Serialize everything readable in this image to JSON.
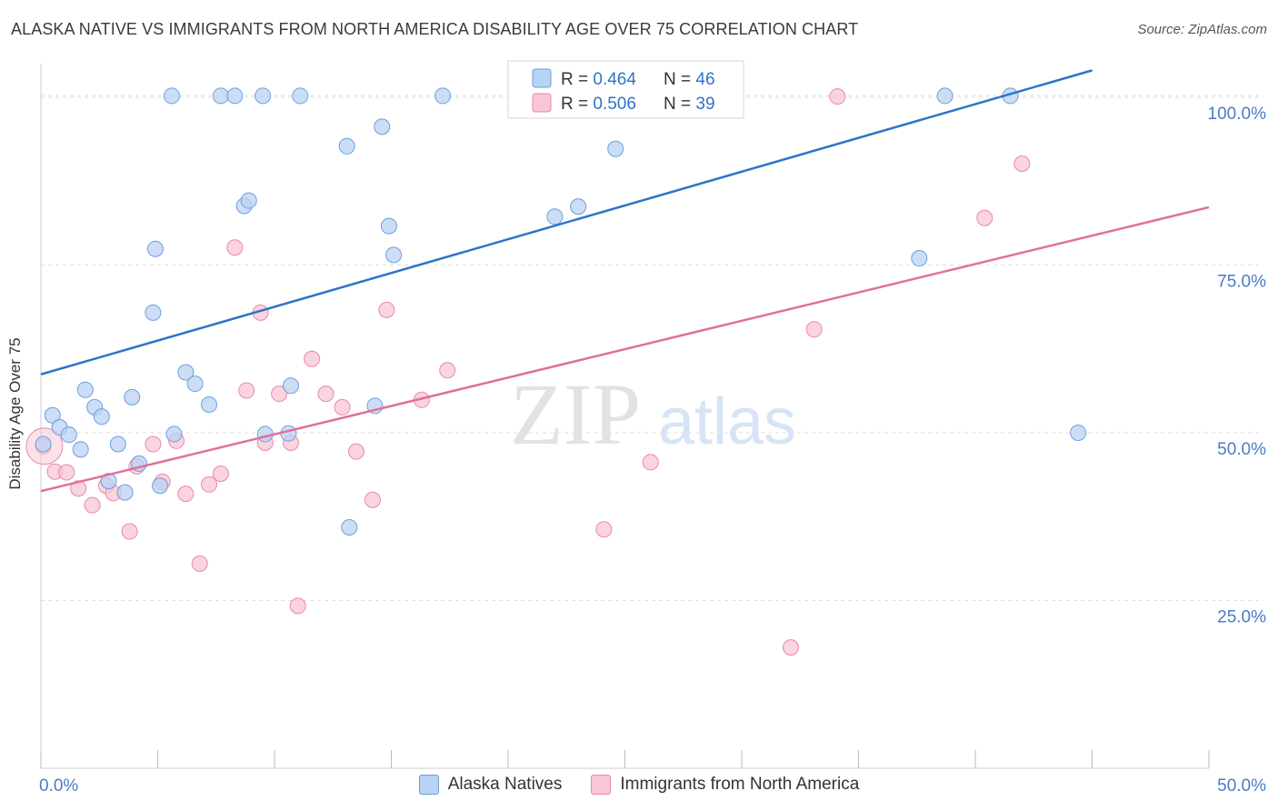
{
  "title": "ALASKA NATIVE VS IMMIGRANTS FROM NORTH AMERICA DISABILITY AGE OVER 75 CORRELATION CHART",
  "source": "Source: ZipAtlas.com",
  "watermark": {
    "zip": "ZIP",
    "atlas": "atlas"
  },
  "colors": {
    "blue_fill": "#b9d3f3",
    "blue_stroke": "#6d9ee0",
    "blue_line": "#2e74c9",
    "pink_fill": "#f8c6d4",
    "pink_stroke": "#e98aa8",
    "pink_line": "#e0709a",
    "tick_label": "#4a7cc4",
    "grid": "#dedede"
  },
  "legend": {
    "rows": [
      {
        "r_label": "R = ",
        "r_value": "0.464",
        "n_label": "N = ",
        "n_value": "46"
      },
      {
        "r_label": "R = ",
        "r_value": "0.506",
        "n_label": "N = ",
        "n_value": "39"
      }
    ]
  },
  "chart_data": {
    "type": "scatter",
    "title": "ALASKA NATIVE VS IMMIGRANTS FROM NORTH AMERICA DISABILITY AGE OVER 75 CORRELATION CHART",
    "xlabel": "",
    "ylabel": "Disability Age Over 75",
    "xlim": [
      0,
      50
    ],
    "ylim": [
      0,
      105
    ],
    "x_tick_labels": [
      "0.0%",
      "50.0%"
    ],
    "y_ticks": [
      25,
      50,
      75,
      100
    ],
    "y_tick_labels": [
      "25.0%",
      "50.0%",
      "75.0%",
      "100.0%"
    ],
    "grid": true,
    "legend_position": "bottom",
    "series": [
      {
        "name": "Alaska Natives",
        "r": 0.464,
        "n": 46,
        "trend": {
          "x": [
            0,
            45
          ],
          "y": [
            58.7,
            104
          ]
        },
        "points": [
          [
            0.1,
            48.3
          ],
          [
            0.5,
            52.6
          ],
          [
            0.8,
            50.8
          ],
          [
            1.2,
            49.7
          ],
          [
            1.7,
            47.5
          ],
          [
            1.9,
            56.4
          ],
          [
            2.3,
            53.8
          ],
          [
            2.6,
            52.4
          ],
          [
            2.9,
            42.8
          ],
          [
            3.3,
            48.3
          ],
          [
            3.6,
            41.1
          ],
          [
            3.9,
            55.3
          ],
          [
            4.2,
            45.4
          ],
          [
            5.1,
            42.1
          ],
          [
            4.8,
            67.9
          ],
          [
            4.9,
            77.4
          ],
          [
            5.7,
            49.8
          ],
          [
            6.2,
            59.0
          ],
          [
            6.6,
            57.3
          ],
          [
            7.2,
            54.2
          ],
          [
            5.6,
            100.2
          ],
          [
            7.7,
            100.2
          ],
          [
            8.3,
            100.2
          ],
          [
            9.5,
            100.2
          ],
          [
            11.1,
            100.2
          ],
          [
            8.7,
            83.8
          ],
          [
            8.9,
            84.6
          ],
          [
            9.6,
            49.8
          ],
          [
            10.7,
            57.0
          ],
          [
            10.6,
            49.9
          ],
          [
            13.1,
            92.7
          ],
          [
            13.2,
            35.9
          ],
          [
            14.3,
            54.0
          ],
          [
            14.6,
            95.6
          ],
          [
            14.9,
            80.8
          ],
          [
            15.1,
            76.5
          ],
          [
            17.2,
            100.2
          ],
          [
            21.3,
            100.2
          ],
          [
            22.0,
            82.2
          ],
          [
            23.0,
            83.7
          ],
          [
            24.6,
            92.3
          ],
          [
            29.1,
            100.2
          ],
          [
            38.7,
            100.2
          ],
          [
            37.6,
            76.0
          ],
          [
            41.5,
            100.2
          ],
          [
            44.4,
            50.0
          ]
        ]
      },
      {
        "name": "Immigrants from North America",
        "r": 0.506,
        "n": 39,
        "trend": {
          "x": [
            0,
            50
          ],
          "y": [
            41.3,
            83.6
          ]
        },
        "points": [
          [
            0.1,
            48.0
          ],
          [
            0.6,
            44.2
          ],
          [
            1.1,
            44.1
          ],
          [
            1.6,
            41.7
          ],
          [
            2.2,
            39.2
          ],
          [
            2.8,
            42.1
          ],
          [
            3.1,
            41.0
          ],
          [
            3.8,
            35.3
          ],
          [
            4.1,
            45.0
          ],
          [
            4.8,
            48.3
          ],
          [
            5.2,
            42.7
          ],
          [
            5.8,
            48.8
          ],
          [
            6.2,
            40.9
          ],
          [
            6.8,
            30.5
          ],
          [
            7.2,
            42.3
          ],
          [
            7.7,
            43.9
          ],
          [
            8.3,
            77.6
          ],
          [
            8.8,
            56.3
          ],
          [
            9.4,
            67.9
          ],
          [
            9.6,
            48.5
          ],
          [
            10.2,
            55.8
          ],
          [
            10.7,
            48.5
          ],
          [
            11.0,
            24.2
          ],
          [
            11.6,
            61.0
          ],
          [
            12.2,
            55.8
          ],
          [
            12.9,
            53.8
          ],
          [
            13.5,
            47.2
          ],
          [
            14.2,
            40.0
          ],
          [
            14.8,
            68.3
          ],
          [
            16.3,
            54.9
          ],
          [
            17.4,
            59.3
          ],
          [
            21.2,
            100.1
          ],
          [
            24.1,
            35.6
          ],
          [
            26.1,
            45.6
          ],
          [
            32.1,
            18.0
          ],
          [
            33.1,
            65.4
          ],
          [
            34.1,
            100.1
          ],
          [
            40.4,
            82.0
          ],
          [
            42.0,
            90.1
          ]
        ]
      }
    ]
  }
}
